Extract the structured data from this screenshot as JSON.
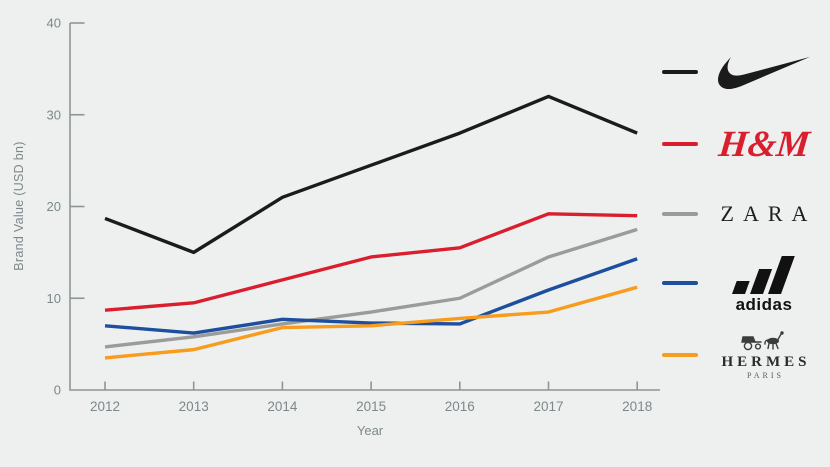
{
  "chart_data": {
    "type": "line",
    "title": "",
    "xlabel": "Year",
    "ylabel": "Brand Value (USD bn)",
    "x": [
      2012,
      2013,
      2014,
      2015,
      2016,
      2017,
      2018
    ],
    "ylim": [
      0,
      40
    ],
    "yticks": [
      0,
      10,
      20,
      30,
      40
    ],
    "grid": false,
    "legend_position": "right",
    "series": [
      {
        "name": "Nike",
        "color": "#1b1b1b",
        "values": [
          18.7,
          15.0,
          21.0,
          24.5,
          28.0,
          32.0,
          28.0
        ]
      },
      {
        "name": "H&M",
        "color": "#d91f2e",
        "values": [
          8.7,
          9.5,
          12.0,
          14.5,
          15.5,
          19.2,
          19.0
        ]
      },
      {
        "name": "Zara",
        "color": "#9b9b9b",
        "values": [
          4.7,
          5.8,
          7.2,
          8.5,
          10.0,
          14.5,
          17.5
        ]
      },
      {
        "name": "adidas",
        "color": "#1d4f9e",
        "values": [
          7.0,
          6.2,
          7.7,
          7.3,
          7.2,
          10.9,
          14.3
        ]
      },
      {
        "name": "Hermes",
        "color": "#f79c1c",
        "values": [
          3.5,
          4.4,
          6.8,
          7.0,
          7.8,
          8.5,
          11.2
        ]
      }
    ]
  },
  "legend": {
    "hm_label": "H&M",
    "zara_label": "ZARA",
    "adidas_label": "adidas",
    "hermes_label": "HERMES",
    "hermes_sub": "PARIS"
  },
  "axis_colors": {
    "axis_line": "#8d9697",
    "tick_text": "#7d8889"
  }
}
